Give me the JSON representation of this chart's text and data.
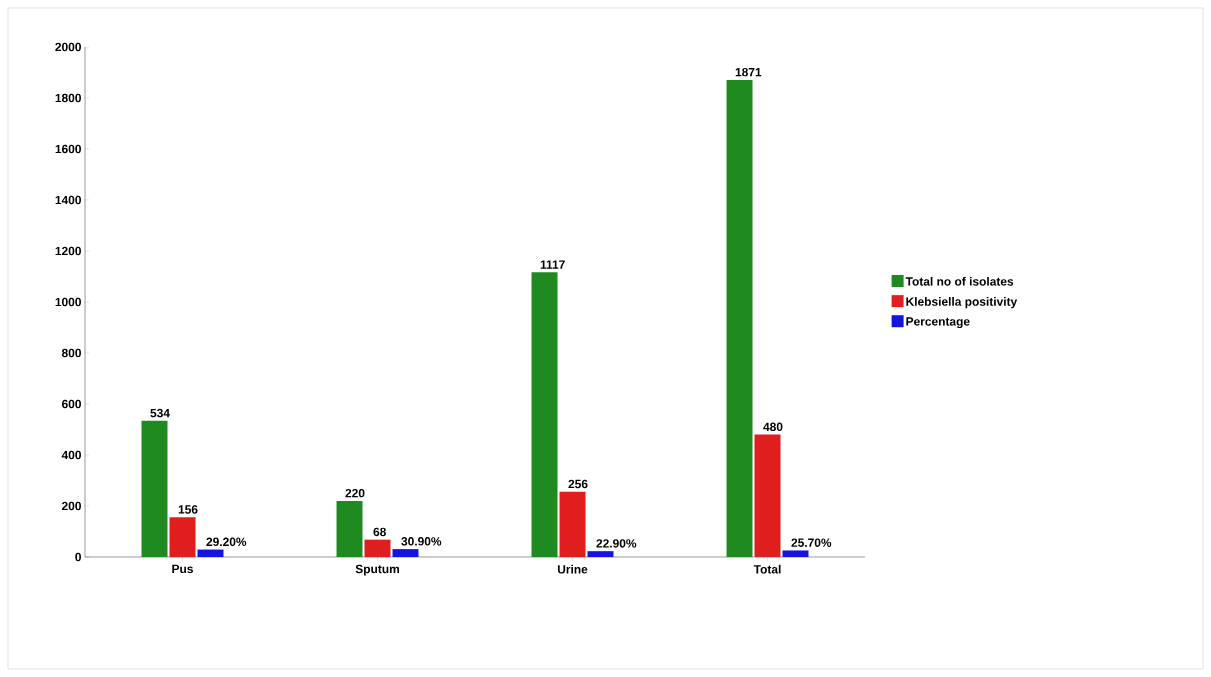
{
  "chart_data": {
    "type": "bar",
    "categories": [
      "Pus",
      "Sputum",
      "Urine",
      "Total"
    ],
    "series": [
      {
        "name": "Total no of isolates",
        "color": "#1f8a1f",
        "values": [
          534,
          220,
          1117,
          1871
        ],
        "value_labels": [
          "534",
          "220",
          "1117",
          "1871"
        ]
      },
      {
        "name": "Klebsiella positivity",
        "color": "#e01e1e",
        "values": [
          156,
          68,
          256,
          480
        ],
        "value_labels": [
          "156",
          "68",
          "256",
          "480"
        ]
      },
      {
        "name": "Percentage",
        "color": "#1414e0",
        "values": [
          29.2,
          30.9,
          22.9,
          25.7
        ],
        "value_labels": [
          "29.20%",
          "30.90%",
          "22.90%",
          "25.70%"
        ]
      }
    ],
    "ylim": [
      0,
      2000
    ],
    "yticks": [
      0,
      200,
      400,
      600,
      800,
      1000,
      1200,
      1400,
      1600,
      1800,
      2000
    ],
    "grid": false,
    "legend": "right"
  }
}
